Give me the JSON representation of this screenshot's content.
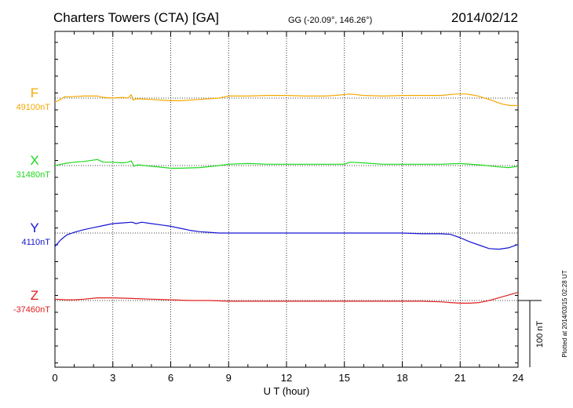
{
  "header": {
    "station": "Charters Towers (CTA)  [GA]",
    "coords": "GG (-20.09°, 146.26°)",
    "date": "2014/02/12"
  },
  "side_note": "Plotted at 2014/03/15 02:28 UT",
  "scale_bar": {
    "label": "100 nT",
    "value_nT": 100
  },
  "chart_data": {
    "type": "line",
    "xlabel": "U T (hour)",
    "xlim": [
      0,
      24
    ],
    "xticks": [
      "0",
      "3",
      "6",
      "9",
      "12",
      "15",
      "18",
      "21",
      "24"
    ],
    "grid": true,
    "units_per_panel_step_nT": 100,
    "series": [
      {
        "name": "F",
        "baseline_label": "49100nT",
        "color": "#f5a800",
        "points": [
          [
            0,
            49094
          ],
          [
            0.3,
            49098
          ],
          [
            0.5,
            49102
          ],
          [
            0.8,
            49102
          ],
          [
            1.5,
            49103
          ],
          [
            2.2,
            49103
          ],
          [
            2.5,
            49101
          ],
          [
            3.0,
            49100
          ],
          [
            3.5,
            49101
          ],
          [
            3.8,
            49100
          ],
          [
            3.95,
            49105
          ],
          [
            4.05,
            49097
          ],
          [
            4.2,
            49099
          ],
          [
            5.0,
            49098
          ],
          [
            6.0,
            49096
          ],
          [
            6.5,
            49096
          ],
          [
            7.5,
            49098
          ],
          [
            8.5,
            49100
          ],
          [
            9.0,
            49103
          ],
          [
            10.0,
            49103
          ],
          [
            11.0,
            49104
          ],
          [
            12.0,
            49104
          ],
          [
            13.0,
            49103
          ],
          [
            14.0,
            49103
          ],
          [
            14.5,
            49104
          ],
          [
            15.3,
            49106
          ],
          [
            16.0,
            49104
          ],
          [
            17.0,
            49103
          ],
          [
            18.0,
            49104
          ],
          [
            19.0,
            49104
          ],
          [
            20.0,
            49104
          ],
          [
            20.8,
            49106
          ],
          [
            21.3,
            49106
          ],
          [
            21.8,
            49104
          ],
          [
            22.5,
            49098
          ],
          [
            23.2,
            49091
          ],
          [
            23.6,
            49089
          ],
          [
            24.0,
            49089
          ]
        ]
      },
      {
        "name": "X",
        "baseline_label": "31480nT",
        "color": "#1ed81e",
        "points": [
          [
            0,
            31480
          ],
          [
            0.5,
            31483
          ],
          [
            1.0,
            31485
          ],
          [
            1.5,
            31486
          ],
          [
            2.2,
            31489
          ],
          [
            2.5,
            31485
          ],
          [
            3.0,
            31485
          ],
          [
            3.5,
            31484
          ],
          [
            3.8,
            31485
          ],
          [
            3.95,
            31487
          ],
          [
            4.1,
            31479
          ],
          [
            4.3,
            31481
          ],
          [
            5.0,
            31479
          ],
          [
            6.0,
            31476
          ],
          [
            6.5,
            31476
          ],
          [
            7.5,
            31477
          ],
          [
            8.5,
            31480
          ],
          [
            9.0,
            31482
          ],
          [
            10.0,
            31483
          ],
          [
            11.0,
            31482
          ],
          [
            12.0,
            31482
          ],
          [
            13.0,
            31482
          ],
          [
            14.0,
            31482
          ],
          [
            15.0,
            31482
          ],
          [
            15.3,
            31485
          ],
          [
            16.0,
            31484
          ],
          [
            17.0,
            31482
          ],
          [
            18.0,
            31482
          ],
          [
            19.0,
            31482
          ],
          [
            20.0,
            31482
          ],
          [
            21.0,
            31483
          ],
          [
            22.0,
            31481
          ],
          [
            23.0,
            31478
          ],
          [
            23.5,
            31477
          ],
          [
            24.0,
            31479
          ]
        ]
      },
      {
        "name": "Y",
        "baseline_label": "4110nT",
        "color": "#1414d2",
        "points": [
          [
            0,
            4090
          ],
          [
            0.3,
            4100
          ],
          [
            0.6,
            4107
          ],
          [
            1.0,
            4111
          ],
          [
            1.5,
            4115
          ],
          [
            2.0,
            4118
          ],
          [
            2.5,
            4121
          ],
          [
            3.0,
            4124
          ],
          [
            3.5,
            4125
          ],
          [
            4.0,
            4126
          ],
          [
            4.2,
            4124
          ],
          [
            4.5,
            4126
          ],
          [
            5.0,
            4124
          ],
          [
            5.5,
            4122
          ],
          [
            6.0,
            4120
          ],
          [
            6.5,
            4117
          ],
          [
            7.0,
            4114
          ],
          [
            7.5,
            4112
          ],
          [
            8.0,
            4111
          ],
          [
            8.5,
            4110
          ],
          [
            9.0,
            4110
          ],
          [
            10.0,
            4110
          ],
          [
            11.0,
            4110
          ],
          [
            12.0,
            4110
          ],
          [
            13.0,
            4110
          ],
          [
            14.0,
            4110
          ],
          [
            15.0,
            4110
          ],
          [
            16.0,
            4110
          ],
          [
            17.0,
            4110
          ],
          [
            18.0,
            4110
          ],
          [
            19.0,
            4109
          ],
          [
            20.0,
            4109
          ],
          [
            20.5,
            4108
          ],
          [
            21.0,
            4103
          ],
          [
            21.5,
            4097
          ],
          [
            22.0,
            4092
          ],
          [
            22.5,
            4087
          ],
          [
            23.0,
            4086
          ],
          [
            23.5,
            4088
          ],
          [
            24.0,
            4093
          ]
        ]
      },
      {
        "name": "Z",
        "baseline_label": "-37460nT",
        "color": "#e01e1e",
        "points": [
          [
            0,
            -37458
          ],
          [
            0.5,
            -37459
          ],
          [
            1.0,
            -37459
          ],
          [
            1.5,
            -37458
          ],
          [
            2.2,
            -37456
          ],
          [
            3.0,
            -37456
          ],
          [
            4.0,
            -37457
          ],
          [
            5.0,
            -37458
          ],
          [
            6.0,
            -37459
          ],
          [
            7.0,
            -37460
          ],
          [
            8.0,
            -37460
          ],
          [
            9.0,
            -37461
          ],
          [
            10.0,
            -37461
          ],
          [
            11.0,
            -37461
          ],
          [
            12.0,
            -37461
          ],
          [
            13.0,
            -37461
          ],
          [
            14.0,
            -37461
          ],
          [
            15.0,
            -37461
          ],
          [
            16.0,
            -37461
          ],
          [
            17.0,
            -37461
          ],
          [
            18.0,
            -37461
          ],
          [
            19.0,
            -37461
          ],
          [
            20.0,
            -37462
          ],
          [
            20.5,
            -37463
          ],
          [
            21.0,
            -37464
          ],
          [
            21.5,
            -37464
          ],
          [
            22.0,
            -37463
          ],
          [
            22.5,
            -37460
          ],
          [
            23.0,
            -37456
          ],
          [
            23.5,
            -37452
          ],
          [
            24.0,
            -37448
          ]
        ]
      }
    ]
  }
}
